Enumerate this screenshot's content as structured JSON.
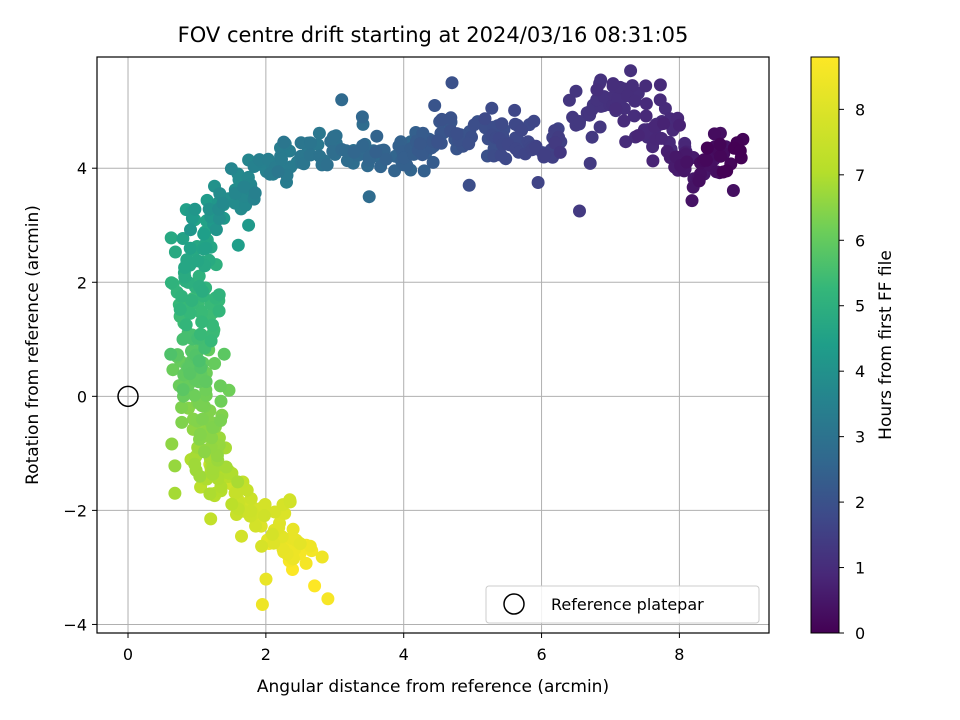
{
  "chart_data": {
    "type": "scatter",
    "title": "FOV centre drift starting at 2024/03/16 08:31:05",
    "xlabel": "Angular distance from reference (arcmin)",
    "ylabel": "Rotation from reference (arcmin)",
    "xlim": [
      -0.45,
      9.3
    ],
    "ylim": [
      -4.15,
      5.95
    ],
    "xticks": [
      "0",
      "2",
      "4",
      "6",
      "8"
    ],
    "yticks": [
      "−4",
      "−2",
      "0",
      "2",
      "4"
    ],
    "grid": true,
    "colormap": "viridis",
    "colorbar": {
      "label": "Hours from first FF file",
      "range": [
        0,
        8.8
      ],
      "ticks": [
        "0",
        "1",
        "2",
        "3",
        "4",
        "5",
        "6",
        "7",
        "8"
      ]
    },
    "legend": {
      "position": "bottom-right",
      "entries": [
        "Reference platepar"
      ]
    },
    "reference_point": {
      "x": 0,
      "y": 0,
      "label": "Reference platepar"
    },
    "track": [
      {
        "x": 8.9,
        "y": 4.35,
        "hours": 0.0
      },
      {
        "x": 8.3,
        "y": 3.95,
        "hours": 0.5
      },
      {
        "x": 7.7,
        "y": 4.6,
        "hours": 1.0
      },
      {
        "x": 7.15,
        "y": 5.45,
        "hours": 1.2
      },
      {
        "x": 6.5,
        "y": 4.5,
        "hours": 1.5
      },
      {
        "x": 6.0,
        "y": 4.4,
        "hours": 1.8
      },
      {
        "x": 5.4,
        "y": 4.6,
        "hours": 2.0
      },
      {
        "x": 4.7,
        "y": 4.6,
        "hours": 2.3
      },
      {
        "x": 4.0,
        "y": 4.2,
        "hours": 2.7
      },
      {
        "x": 3.3,
        "y": 4.3,
        "hours": 3.1
      },
      {
        "x": 2.5,
        "y": 4.2,
        "hours": 3.5
      },
      {
        "x": 1.9,
        "y": 3.9,
        "hours": 3.9
      },
      {
        "x": 1.4,
        "y": 3.5,
        "hours": 4.3
      },
      {
        "x": 1.1,
        "y": 3.0,
        "hours": 4.8
      },
      {
        "x": 1.0,
        "y": 2.2,
        "hours": 5.5
      },
      {
        "x": 1.0,
        "y": 1.3,
        "hours": 6.0
      },
      {
        "x": 0.95,
        "y": 0.5,
        "hours": 6.6
      },
      {
        "x": 1.0,
        "y": -0.3,
        "hours": 7.0
      },
      {
        "x": 1.1,
        "y": -1.0,
        "hours": 7.5
      },
      {
        "x": 1.5,
        "y": -1.7,
        "hours": 8.0
      },
      {
        "x": 2.0,
        "y": -2.2,
        "hours": 8.3
      },
      {
        "x": 2.4,
        "y": -2.7,
        "hours": 8.6
      },
      {
        "x": 2.7,
        "y": -3.1,
        "hours": 8.8
      }
    ],
    "outliers": [
      {
        "x": 3.1,
        "y": 5.2,
        "hours": 3.0
      },
      {
        "x": 3.4,
        "y": 4.9,
        "hours": 2.9
      },
      {
        "x": 4.7,
        "y": 5.5,
        "hours": 2.2
      },
      {
        "x": 4.45,
        "y": 5.1,
        "hours": 2.3
      },
      {
        "x": 6.55,
        "y": 3.25,
        "hours": 1.5
      },
      {
        "x": 5.95,
        "y": 3.75,
        "hours": 1.8
      },
      {
        "x": 3.5,
        "y": 3.5,
        "hours": 3.1
      },
      {
        "x": 4.95,
        "y": 3.7,
        "hours": 2.1
      },
      {
        "x": 6.5,
        "y": 5.35,
        "hours": 1.4
      },
      {
        "x": 6.8,
        "y": 5.2,
        "hours": 1.3
      },
      {
        "x": 1.95,
        "y": -3.65,
        "hours": 8.6
      },
      {
        "x": 2.9,
        "y": -3.55,
        "hours": 8.7
      },
      {
        "x": 0.68,
        "y": -1.7,
        "hours": 7.6
      },
      {
        "x": 0.68,
        "y": -1.22,
        "hours": 7.4
      },
      {
        "x": 1.2,
        "y": -2.15,
        "hours": 8.0
      },
      {
        "x": 1.6,
        "y": 2.65,
        "hours": 4.9
      },
      {
        "x": 1.75,
        "y": 3.0,
        "hours": 4.7
      }
    ],
    "point_count": 620
  }
}
